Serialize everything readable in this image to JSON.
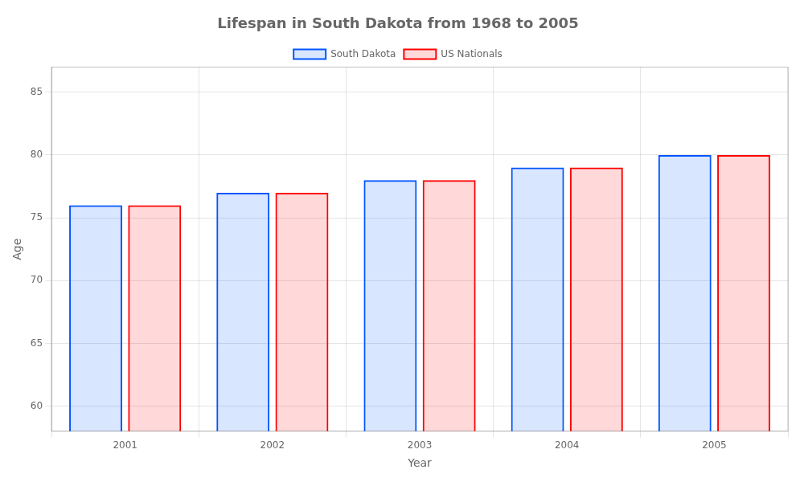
{
  "chart_data": {
    "type": "bar",
    "title": "Lifespan in South Dakota from 1968 to 2005",
    "xlabel": "Year",
    "ylabel": "Age",
    "categories": [
      "2001",
      "2002",
      "2003",
      "2004",
      "2005"
    ],
    "series": [
      {
        "name": "South Dakota",
        "color": "#0055ff",
        "values": [
          76,
          77,
          78,
          79,
          80
        ]
      },
      {
        "name": "US Nationals",
        "color": "#ff0000",
        "values": [
          76,
          77,
          78,
          79,
          80
        ]
      }
    ],
    "ylim": [
      58,
      87
    ],
    "yticks": [
      60,
      65,
      70,
      75,
      80,
      85
    ],
    "grid": true,
    "legend": "top"
  }
}
